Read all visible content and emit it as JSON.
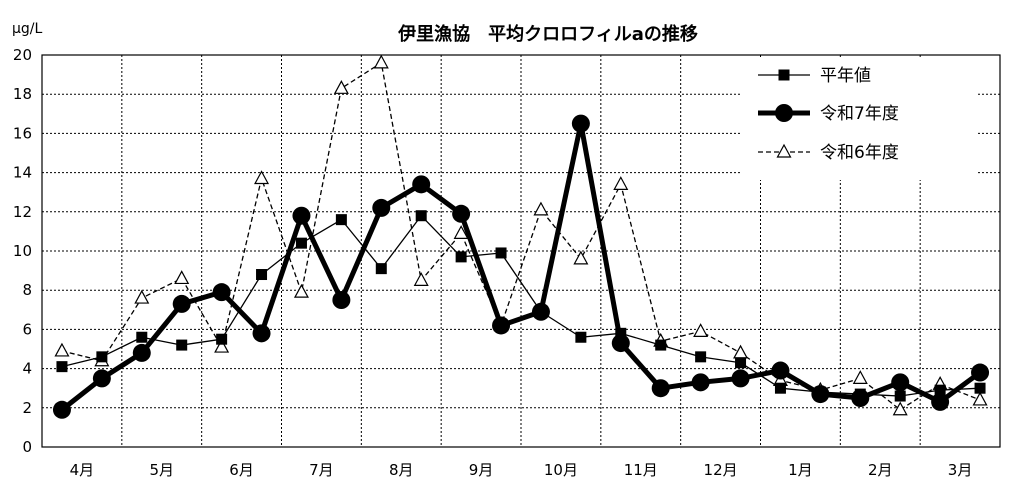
{
  "chart_data": {
    "type": "line",
    "title": "伊里漁協　平均クロロフィルaの推移",
    "unit_label": "μg/L",
    "ylim": [
      0,
      20
    ],
    "y_ticks": [
      "0",
      "2",
      "4",
      "6",
      "8",
      "10",
      "12",
      "14",
      "16",
      "18",
      "20"
    ],
    "months": [
      "4月",
      "5月",
      "6月",
      "7月",
      "8月",
      "9月",
      "10月",
      "11月",
      "12月",
      "1月",
      "2月",
      "3月"
    ],
    "grid": true,
    "legend_position": "top-right",
    "series": [
      {
        "name": "平年値",
        "style": "thin-solid-square",
        "color": "#000000",
        "points": [
          [
            0.0,
            4.1
          ],
          [
            0.5,
            4.6
          ],
          [
            1.0,
            5.6
          ],
          [
            1.5,
            5.2
          ],
          [
            2.0,
            5.5
          ],
          [
            2.5,
            8.8
          ],
          [
            3.0,
            10.4
          ],
          [
            3.5,
            11.6
          ],
          [
            4.0,
            9.1
          ],
          [
            4.5,
            11.8
          ],
          [
            5.0,
            9.7
          ],
          [
            5.5,
            9.9
          ],
          [
            6.0,
            6.9
          ],
          [
            6.5,
            5.6
          ],
          [
            7.0,
            5.8
          ],
          [
            7.5,
            5.2
          ],
          [
            8.0,
            4.6
          ],
          [
            8.5,
            4.3
          ],
          [
            9.0,
            3.0
          ],
          [
            9.5,
            2.8
          ],
          [
            10.0,
            2.7
          ],
          [
            10.5,
            2.6
          ],
          [
            11.0,
            2.9
          ],
          [
            11.5,
            3.0
          ]
        ]
      },
      {
        "name": "令和7年度",
        "style": "thick-solid-circle",
        "color": "#000000",
        "points": [
          [
            0.0,
            1.9
          ],
          [
            0.5,
            3.5
          ],
          [
            1.0,
            4.8
          ],
          [
            1.5,
            7.3
          ],
          [
            2.0,
            7.9
          ],
          [
            2.5,
            5.8
          ],
          [
            3.0,
            11.8
          ],
          [
            3.5,
            7.5
          ],
          [
            4.0,
            12.2
          ],
          [
            4.5,
            13.4
          ],
          [
            5.0,
            11.9
          ],
          [
            5.5,
            6.2
          ],
          [
            6.0,
            6.9
          ],
          [
            6.5,
            16.5
          ],
          [
            7.0,
            5.3
          ],
          [
            7.5,
            3.0
          ],
          [
            8.0,
            3.3
          ],
          [
            8.5,
            3.5
          ],
          [
            9.0,
            3.9
          ],
          [
            9.5,
            2.7
          ],
          [
            10.0,
            2.5
          ],
          [
            10.5,
            3.3
          ],
          [
            11.0,
            2.3
          ],
          [
            11.5,
            3.8
          ]
        ]
      },
      {
        "name": "令和6年度",
        "style": "dashed-triangle",
        "color": "#000000",
        "points": [
          [
            0.0,
            4.9
          ],
          [
            0.5,
            4.4
          ],
          [
            1.0,
            7.6
          ],
          [
            1.5,
            8.6
          ],
          [
            2.0,
            5.1
          ],
          [
            2.5,
            13.7
          ],
          [
            3.0,
            7.9
          ],
          [
            3.5,
            18.3
          ],
          [
            4.0,
            19.6
          ],
          [
            4.5,
            8.5
          ],
          [
            5.0,
            10.9
          ],
          [
            5.5,
            6.2
          ],
          [
            6.0,
            12.1
          ],
          [
            6.5,
            9.6
          ],
          [
            7.0,
            13.4
          ],
          [
            7.5,
            5.4
          ],
          [
            8.0,
            5.9
          ],
          [
            8.5,
            4.8
          ],
          [
            9.0,
            3.4
          ],
          [
            9.5,
            2.9
          ],
          [
            10.0,
            3.5
          ],
          [
            10.5,
            1.9
          ],
          [
            11.0,
            3.2
          ],
          [
            11.5,
            2.4
          ]
        ]
      }
    ]
  }
}
